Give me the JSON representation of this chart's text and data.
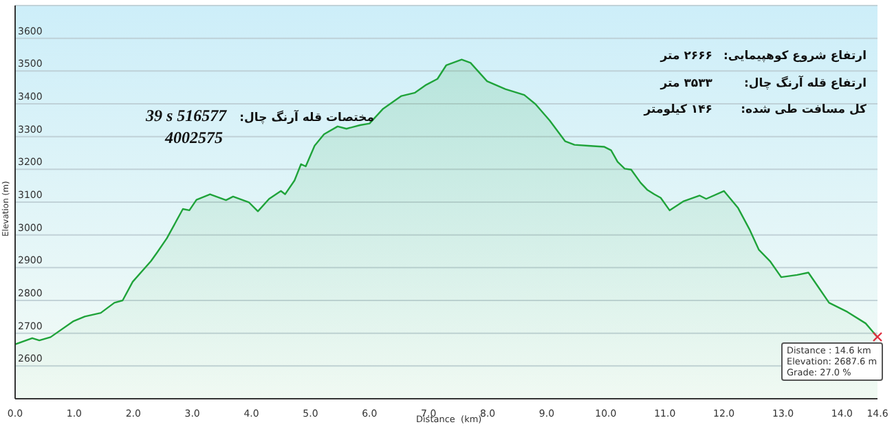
{
  "chart_data": {
    "type": "area",
    "xlabel": "Distance  (km)",
    "ylabel": "Elevation (m)",
    "color": "#1fa33a",
    "grid": "y",
    "xlim": [
      0,
      14.6
    ],
    "xticks": [
      {
        "value": 0,
        "label": "0.0"
      },
      {
        "value": 1,
        "label": "1.0"
      },
      {
        "value": 2,
        "label": "2.0"
      },
      {
        "value": 3,
        "label": "3.0"
      },
      {
        "value": 4,
        "label": "4.0"
      },
      {
        "value": 5,
        "label": "5.0"
      },
      {
        "value": 6,
        "label": "6.0"
      },
      {
        "value": 7,
        "label": "7.0"
      },
      {
        "value": 8,
        "label": "8.0"
      },
      {
        "value": 9,
        "label": "9.0"
      },
      {
        "value": 10,
        "label": "10.0"
      },
      {
        "value": 11,
        "label": "11.0"
      },
      {
        "value": 12,
        "label": "12.0"
      },
      {
        "value": 13,
        "label": "13.0"
      },
      {
        "value": 14,
        "label": "14.0"
      },
      {
        "value": 14.6,
        "label": "14.6"
      }
    ],
    "ylim": [
      2500,
      3700
    ],
    "yticks": [
      {
        "value": 2500,
        "label": null
      },
      2600,
      2700,
      2800,
      2900,
      3000,
      3100,
      3200,
      3300,
      3400,
      3500,
      3600
    ],
    "x": [
      0,
      0.29,
      0.41,
      0.6,
      0.99,
      1.18,
      1.45,
      1.68,
      1.82,
      1.99,
      2.3,
      2.41,
      2.57,
      2.84,
      2.95,
      3.07,
      3.3,
      3.57,
      3.69,
      3.96,
      4.11,
      4.3,
      4.5,
      4.57,
      4.73,
      4.84,
      4.92,
      5.07,
      5.23,
      5.46,
      5.61,
      5.84,
      6.0,
      6.23,
      6.54,
      6.77,
      6.96,
      7.15,
      7.3,
      7.56,
      7.71,
      7.99,
      8.3,
      8.62,
      8.81,
      9.05,
      9.31,
      9.47,
      9.7,
      9.97,
      10.09,
      10.2,
      10.32,
      10.43,
      10.59,
      10.7,
      10.82,
      10.93,
      11.08,
      11.32,
      11.59,
      11.7,
      12.0,
      12.24,
      12.43,
      12.59,
      12.78,
      12.97,
      13.24,
      13.43,
      13.59,
      13.78,
      14.09,
      14.4,
      14.6
    ],
    "values": [
      2666,
      2685,
      2678,
      2688,
      2737,
      2751,
      2762,
      2793,
      2800,
      2857,
      2920,
      2948,
      2990,
      3079,
      3075,
      3107,
      3124,
      3106,
      3117,
      3099,
      3072,
      3110,
      3134,
      3124,
      3166,
      3216,
      3209,
      3272,
      3307,
      3331,
      3324,
      3335,
      3340,
      3385,
      3424,
      3434,
      3458,
      3476,
      3518,
      3535,
      3525,
      3469,
      3445,
      3427,
      3399,
      3349,
      3286,
      3275,
      3272,
      3269,
      3258,
      3223,
      3202,
      3199,
      3159,
      3138,
      3124,
      3113,
      3075,
      3103,
      3120,
      3110,
      3134,
      3082,
      3018,
      2955,
      2920,
      2871,
      2878,
      2885,
      2843,
      2793,
      2765,
      2730,
      2688
    ],
    "annotations": [
      "ارتفاع شروع کوهپیمایی:",
      "۲۶۶۶ متر",
      "ارتفاع قله آرنگ چال:",
      "۳۵۳۳ متر",
      "کل مسافت طی شده:",
      "۱۴۶ کیلومتر",
      "مختصات قله آرنگ چال:",
      "39 s 516577",
      "4002575",
      {
        "text": "Distance : 14.6 km\nElevation: 2687.6 m\nGrade: 27.0 %",
        "x": 14.6,
        "y": 2688
      }
    ]
  }
}
